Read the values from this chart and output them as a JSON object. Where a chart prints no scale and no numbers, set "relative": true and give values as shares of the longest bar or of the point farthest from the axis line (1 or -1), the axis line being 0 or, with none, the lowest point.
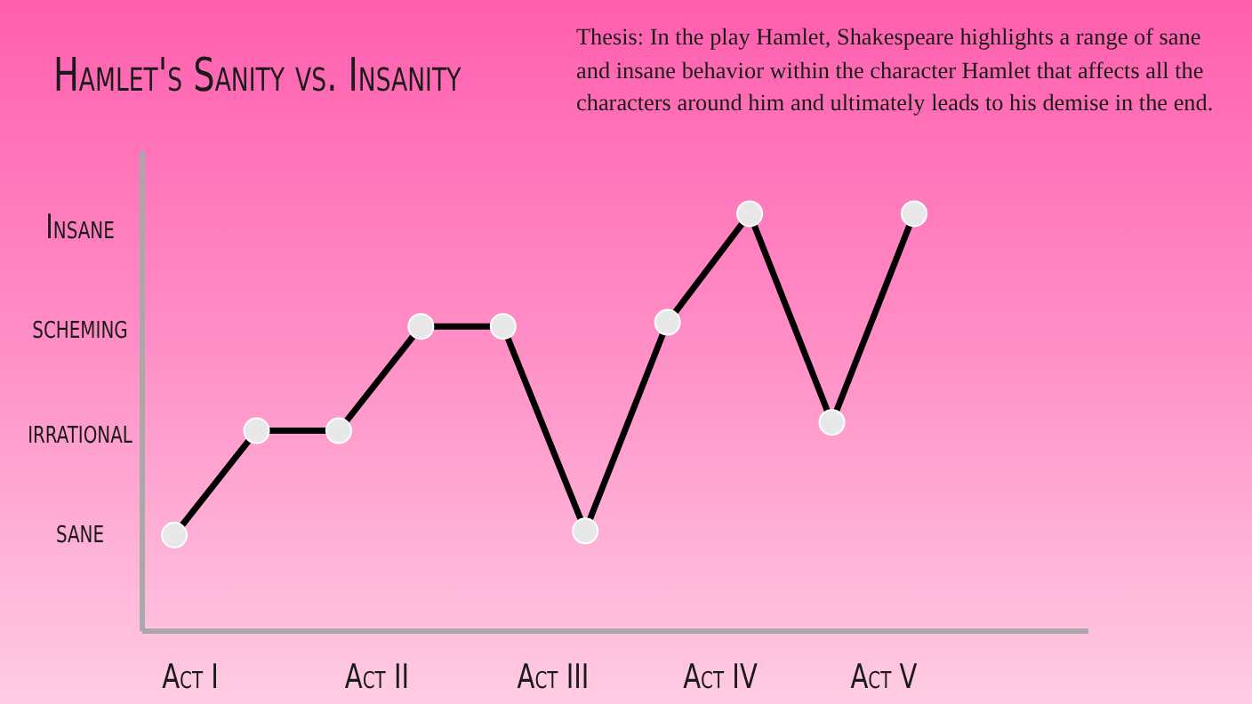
{
  "chart_data": {
    "type": "line",
    "title": "Hamlet's Sanity vs. Insanity",
    "relative": true,
    "annotations": [
      "Thesis: In the play Hamlet, Shakespeare highlights a range of sane and insane behavior within the character Hamlet that affects all the characters around him and ultimately leads to his demise in the end.",
      "Insane",
      "scheming",
      "irrational",
      "sane",
      "Act I",
      "Act II",
      "Act III",
      "Act IV",
      "Act V"
    ],
    "categories": [
      null,
      null,
      null,
      null,
      null,
      null,
      null,
      null,
      null,
      null
    ],
    "series": [
      {
        "color": "#000000",
        "values": [
          0.23,
          0.48,
          0.48,
          0.73,
          0.73,
          0.24,
          0.74,
          1,
          0.5,
          1
        ]
      }
    ],
    "grid": false,
    "legend": false,
    "marker": "circle",
    "line_style": "solid"
  }
}
